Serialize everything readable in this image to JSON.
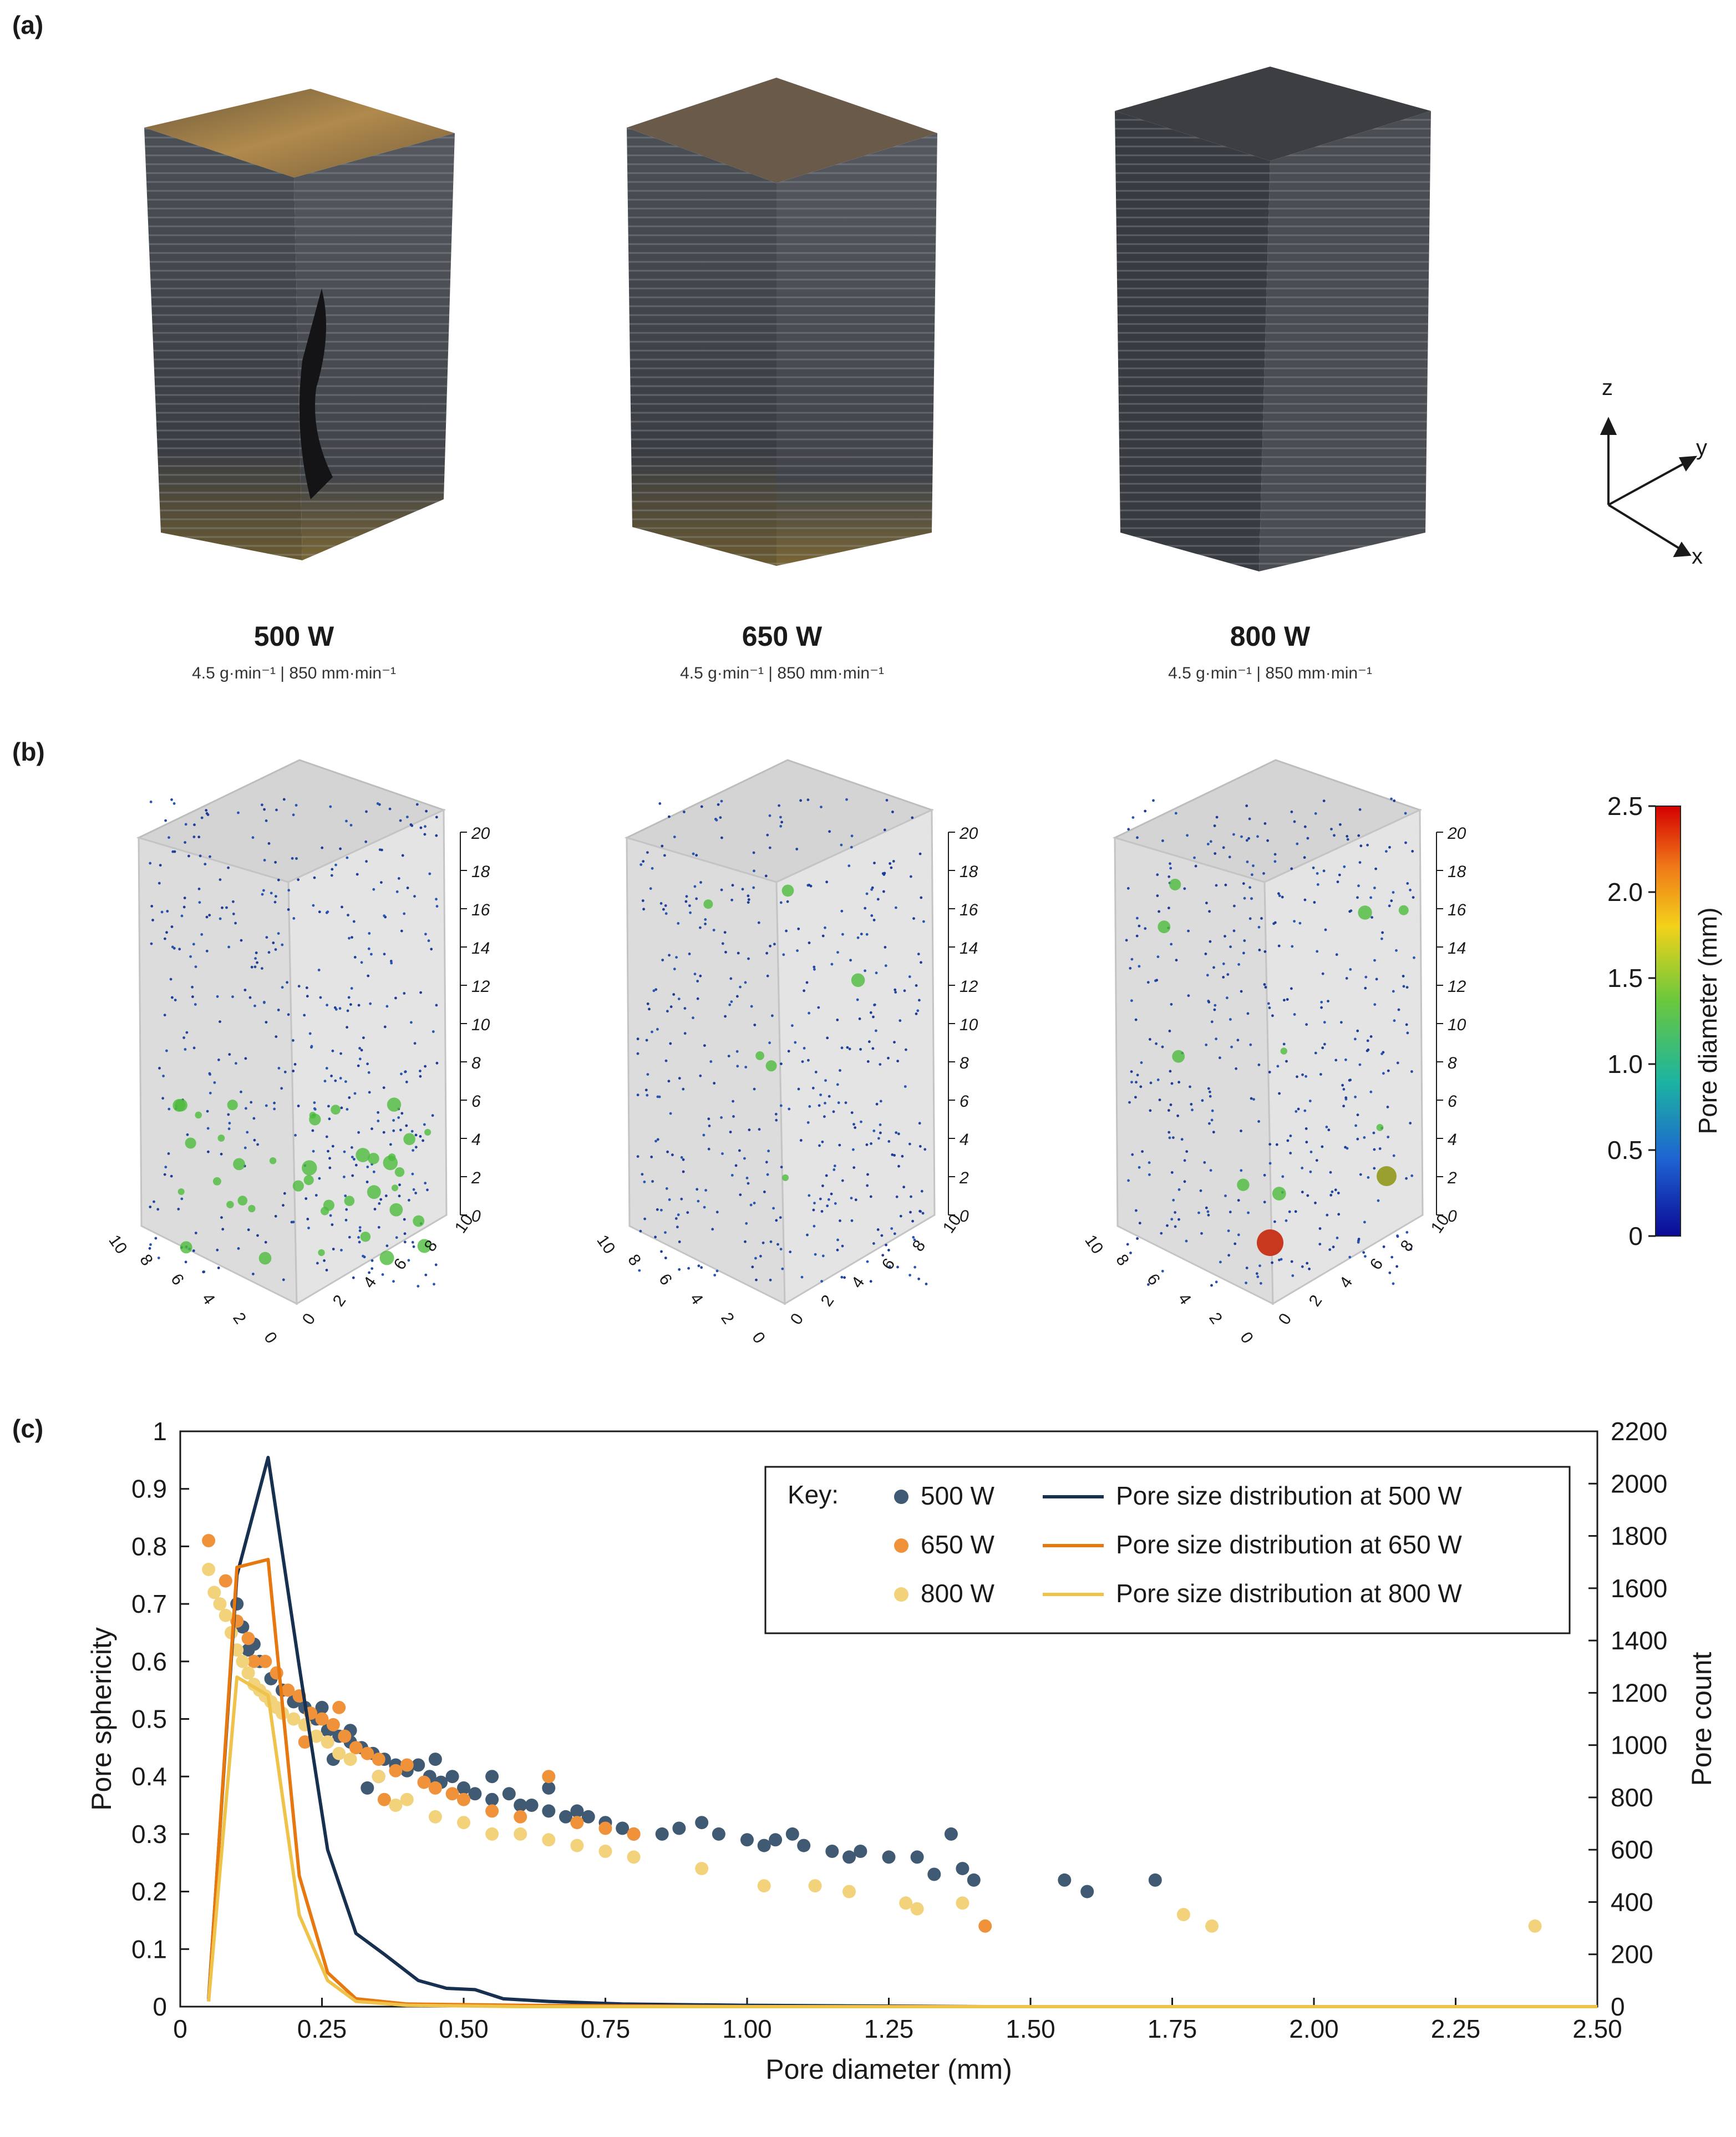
{
  "panels": {
    "a": {
      "label": "(a)",
      "samples": [
        {
          "power": "500 W",
          "conditions": "4.5 g·min⁻¹ | 850 mm·min⁻¹"
        },
        {
          "power": "650 W",
          "conditions": "4.5 g·min⁻¹ | 850 mm·min⁻¹"
        },
        {
          "power": "800 W",
          "conditions": "4.5 g·min⁻¹ | 850 mm·min⁻¹"
        }
      ],
      "axes_triad": {
        "z": "z",
        "y": "y",
        "x": "x"
      }
    },
    "b": {
      "label": "(b)",
      "z_ticks": [
        "20",
        "18",
        "16",
        "14",
        "12",
        "10",
        "8",
        "6",
        "4",
        "2",
        "0"
      ],
      "x_ticks": [
        "10",
        "8",
        "6",
        "4",
        "2",
        "0"
      ],
      "y_ticks": [
        "0",
        "2",
        "4",
        "6",
        "8",
        "10"
      ],
      "colorbar": {
        "label": "Pore diameter (mm)",
        "ticks": [
          "2.5",
          "2.0",
          "1.5",
          "1.0",
          "0.5",
          "0"
        ],
        "colors": [
          "#d40000",
          "#f07818",
          "#f2d21a",
          "#6cc83c",
          "#1cb4a0",
          "#1e64d2",
          "#0a0a96"
        ]
      }
    },
    "c": {
      "label": "(c)"
    }
  },
  "chart_data": {
    "type": "scatter",
    "xlabel": "Pore diameter (mm)",
    "ylabel": "Pore sphericity",
    "y2label": "Pore count",
    "xlim": [
      0,
      2.5
    ],
    "ylim": [
      0,
      1
    ],
    "y2lim": [
      0,
      2200
    ],
    "x_ticks": [
      "0",
      "0.25",
      "0.50",
      "0.75",
      "1.00",
      "1.25",
      "1.50",
      "1.75",
      "2.00",
      "2.25",
      "2.50"
    ],
    "y_ticks": [
      "0",
      "0.1",
      "0.2",
      "0.3",
      "0.4",
      "0.5",
      "0.6",
      "0.7",
      "0.8",
      "0.9",
      "1"
    ],
    "y2_ticks": [
      "0",
      "200",
      "400",
      "600",
      "800",
      "1000",
      "1200",
      "1400",
      "1600",
      "1800",
      "2000",
      "2200"
    ],
    "legend": {
      "key_label": "Key:",
      "position": "top-right",
      "scatter_entries": [
        "500 W",
        "650 W",
        "800 W"
      ],
      "line_entries": [
        "Pore size distribution at 500 W",
        "Pore size distribution at 650 W",
        "Pore size distribution at 800 W"
      ]
    },
    "colors": {
      "500 W": "#3f5a72",
      "650 W": "#f0923a",
      "800 W": "#f3d27c",
      "line500": "#17304f",
      "line650": "#e6780f",
      "line800": "#efc24a"
    },
    "scatter_series": [
      {
        "name": "500 W",
        "points": [
          [
            0.1,
            0.7
          ],
          [
            0.11,
            0.66
          ],
          [
            0.12,
            0.62
          ],
          [
            0.13,
            0.63
          ],
          [
            0.14,
            0.6
          ],
          [
            0.16,
            0.57
          ],
          [
            0.18,
            0.55
          ],
          [
            0.2,
            0.53
          ],
          [
            0.22,
            0.52
          ],
          [
            0.24,
            0.5
          ],
          [
            0.26,
            0.48
          ],
          [
            0.28,
            0.47
          ],
          [
            0.3,
            0.46
          ],
          [
            0.32,
            0.45
          ],
          [
            0.34,
            0.44
          ],
          [
            0.36,
            0.43
          ],
          [
            0.38,
            0.42
          ],
          [
            0.4,
            0.41
          ],
          [
            0.42,
            0.42
          ],
          [
            0.44,
            0.4
          ],
          [
            0.46,
            0.39
          ],
          [
            0.48,
            0.4
          ],
          [
            0.5,
            0.38
          ],
          [
            0.52,
            0.37
          ],
          [
            0.55,
            0.36
          ],
          [
            0.58,
            0.37
          ],
          [
            0.6,
            0.35
          ],
          [
            0.62,
            0.35
          ],
          [
            0.65,
            0.34
          ],
          [
            0.68,
            0.33
          ],
          [
            0.7,
            0.34
          ],
          [
            0.72,
            0.33
          ],
          [
            0.75,
            0.32
          ],
          [
            0.78,
            0.31
          ],
          [
            0.8,
            0.3
          ],
          [
            0.85,
            0.3
          ],
          [
            0.88,
            0.31
          ],
          [
            0.92,
            0.32
          ],
          [
            0.95,
            0.3
          ],
          [
            1.0,
            0.29
          ],
          [
            1.03,
            0.28
          ],
          [
            1.05,
            0.29
          ],
          [
            1.08,
            0.3
          ],
          [
            1.1,
            0.28
          ],
          [
            1.15,
            0.27
          ],
          [
            1.18,
            0.26
          ],
          [
            1.2,
            0.27
          ],
          [
            1.25,
            0.26
          ],
          [
            1.3,
            0.26
          ],
          [
            1.33,
            0.23
          ],
          [
            1.36,
            0.3
          ],
          [
            1.38,
            0.24
          ],
          [
            1.4,
            0.22
          ],
          [
            1.56,
            0.22
          ],
          [
            1.6,
            0.2
          ],
          [
            1.72,
            0.22
          ],
          [
            0.3,
            0.48
          ],
          [
            0.35,
            0.4
          ],
          [
            0.45,
            0.43
          ],
          [
            0.55,
            0.4
          ],
          [
            0.65,
            0.38
          ],
          [
            0.25,
            0.52
          ],
          [
            0.27,
            0.43
          ],
          [
            0.33,
            0.38
          ]
        ]
      },
      {
        "name": "650 W",
        "points": [
          [
            0.05,
            0.81
          ],
          [
            0.08,
            0.74
          ],
          [
            0.1,
            0.67
          ],
          [
            0.12,
            0.64
          ],
          [
            0.13,
            0.6
          ],
          [
            0.15,
            0.6
          ],
          [
            0.17,
            0.58
          ],
          [
            0.19,
            0.55
          ],
          [
            0.21,
            0.54
          ],
          [
            0.23,
            0.51
          ],
          [
            0.25,
            0.5
          ],
          [
            0.27,
            0.49
          ],
          [
            0.29,
            0.47
          ],
          [
            0.31,
            0.45
          ],
          [
            0.33,
            0.44
          ],
          [
            0.35,
            0.43
          ],
          [
            0.38,
            0.41
          ],
          [
            0.4,
            0.42
          ],
          [
            0.43,
            0.39
          ],
          [
            0.45,
            0.38
          ],
          [
            0.48,
            0.37
          ],
          [
            0.5,
            0.36
          ],
          [
            0.55,
            0.34
          ],
          [
            0.6,
            0.33
          ],
          [
            0.65,
            0.4
          ],
          [
            0.7,
            0.32
          ],
          [
            0.75,
            0.31
          ],
          [
            0.8,
            0.3
          ],
          [
            1.42,
            0.14
          ],
          [
            0.22,
            0.46
          ],
          [
            0.28,
            0.52
          ],
          [
            0.36,
            0.36
          ]
        ]
      },
      {
        "name": "800 W",
        "points": [
          [
            0.05,
            0.76
          ],
          [
            0.06,
            0.72
          ],
          [
            0.07,
            0.7
          ],
          [
            0.08,
            0.68
          ],
          [
            0.09,
            0.65
          ],
          [
            0.1,
            0.62
          ],
          [
            0.11,
            0.6
          ],
          [
            0.12,
            0.58
          ],
          [
            0.13,
            0.56
          ],
          [
            0.14,
            0.55
          ],
          [
            0.15,
            0.54
          ],
          [
            0.16,
            0.53
          ],
          [
            0.17,
            0.52
          ],
          [
            0.18,
            0.51
          ],
          [
            0.2,
            0.5
          ],
          [
            0.22,
            0.49
          ],
          [
            0.24,
            0.47
          ],
          [
            0.26,
            0.46
          ],
          [
            0.28,
            0.44
          ],
          [
            0.3,
            0.43
          ],
          [
            0.35,
            0.4
          ],
          [
            0.38,
            0.35
          ],
          [
            0.4,
            0.36
          ],
          [
            0.45,
            0.33
          ],
          [
            0.5,
            0.32
          ],
          [
            0.55,
            0.3
          ],
          [
            0.6,
            0.3
          ],
          [
            0.65,
            0.29
          ],
          [
            0.7,
            0.28
          ],
          [
            0.75,
            0.27
          ],
          [
            0.8,
            0.26
          ],
          [
            0.92,
            0.24
          ],
          [
            1.03,
            0.21
          ],
          [
            1.12,
            0.21
          ],
          [
            1.18,
            0.2
          ],
          [
            1.28,
            0.18
          ],
          [
            1.3,
            0.17
          ],
          [
            1.38,
            0.18
          ],
          [
            1.77,
            0.16
          ],
          [
            1.82,
            0.14
          ],
          [
            2.39,
            0.14
          ]
        ]
      }
    ],
    "line_series": [
      {
        "name": "Pore size distribution at 500 W",
        "points": [
          [
            0.05,
            30
          ],
          [
            0.1,
            1650
          ],
          [
            0.155,
            2100
          ],
          [
            0.21,
            1300
          ],
          [
            0.26,
            600
          ],
          [
            0.31,
            280
          ],
          [
            0.36,
            200
          ],
          [
            0.42,
            100
          ],
          [
            0.47,
            70
          ],
          [
            0.52,
            65
          ],
          [
            0.57,
            30
          ],
          [
            0.65,
            20
          ],
          [
            0.78,
            10
          ],
          [
            1.0,
            5
          ],
          [
            1.42,
            0
          ]
        ]
      },
      {
        "name": "Pore size distribution at 650 W",
        "points": [
          [
            0.05,
            20
          ],
          [
            0.1,
            1680
          ],
          [
            0.155,
            1710
          ],
          [
            0.21,
            500
          ],
          [
            0.26,
            130
          ],
          [
            0.31,
            30
          ],
          [
            0.4,
            10
          ],
          [
            0.6,
            5
          ],
          [
            1.0,
            0
          ],
          [
            2.5,
            0
          ]
        ]
      },
      {
        "name": "Pore size distribution at 800 W",
        "points": [
          [
            0.05,
            20
          ],
          [
            0.1,
            1260
          ],
          [
            0.155,
            1190
          ],
          [
            0.21,
            350
          ],
          [
            0.26,
            100
          ],
          [
            0.31,
            20
          ],
          [
            0.4,
            5
          ],
          [
            0.6,
            0
          ],
          [
            2.5,
            0
          ]
        ]
      }
    ]
  }
}
